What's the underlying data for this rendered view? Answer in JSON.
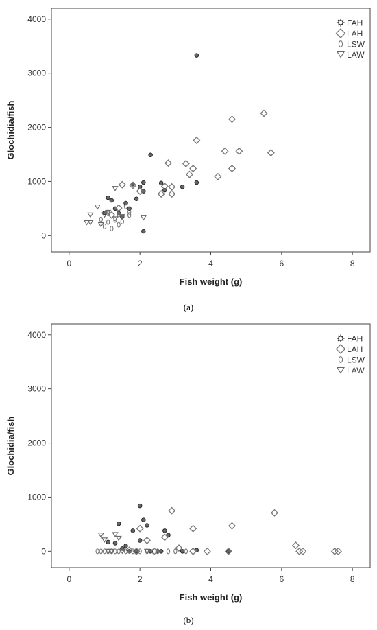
{
  "chart_data": [
    {
      "type": "scatter",
      "panel_label": "(a)",
      "xlabel": "Fish weight (g)",
      "ylabel": "Glochidia/fish",
      "xlim": [
        -0.5,
        8.5
      ],
      "ylim": [
        -300,
        4200
      ],
      "x_ticks": [
        0,
        2,
        4,
        6,
        8
      ],
      "y_ticks": [
        0,
        1000,
        2000,
        3000,
        4000
      ],
      "grid": false,
      "legend_position": "top-right",
      "series": [
        {
          "name": "FAH",
          "marker": "dot",
          "points": [
            [
              1.0,
              420
            ],
            [
              1.1,
              700
            ],
            [
              1.2,
              650
            ],
            [
              1.3,
              500
            ],
            [
              1.4,
              410
            ],
            [
              1.5,
              350
            ],
            [
              1.6,
              600
            ],
            [
              1.7,
              500
            ],
            [
              1.8,
              950
            ],
            [
              1.9,
              680
            ],
            [
              2.0,
              900
            ],
            [
              2.1,
              820
            ],
            [
              2.1,
              980
            ],
            [
              2.1,
              80
            ],
            [
              2.3,
              1490
            ],
            [
              2.6,
              970
            ],
            [
              2.7,
              840
            ],
            [
              3.2,
              900
            ],
            [
              3.6,
              3330
            ],
            [
              3.6,
              980
            ]
          ]
        },
        {
          "name": "LAH",
          "marker": "diamond",
          "points": [
            [
              1.2,
              380
            ],
            [
              1.4,
              510
            ],
            [
              1.5,
              940
            ],
            [
              1.8,
              930
            ],
            [
              2.0,
              820
            ],
            [
              2.6,
              770
            ],
            [
              2.7,
              910
            ],
            [
              2.8,
              1340
            ],
            [
              2.9,
              770
            ],
            [
              2.9,
              900
            ],
            [
              3.3,
              1330
            ],
            [
              3.4,
              1130
            ],
            [
              3.5,
              1240
            ],
            [
              3.6,
              1760
            ],
            [
              4.2,
              1090
            ],
            [
              4.4,
              1560
            ],
            [
              4.6,
              2150
            ],
            [
              4.6,
              1240
            ],
            [
              4.8,
              1560
            ],
            [
              5.5,
              2260
            ],
            [
              5.7,
              1530
            ]
          ]
        },
        {
          "name": "LSW",
          "marker": "zero",
          "points": [
            [
              0.9,
              300
            ],
            [
              1.0,
              170
            ],
            [
              1.1,
              250
            ],
            [
              1.1,
              410
            ],
            [
              1.2,
              130
            ],
            [
              1.3,
              290
            ],
            [
              1.4,
              200
            ],
            [
              1.4,
              390
            ],
            [
              1.5,
              260
            ],
            [
              1.6,
              540
            ],
            [
              1.7,
              440
            ],
            [
              1.7,
              380
            ]
          ]
        },
        {
          "name": "LAW",
          "marker": "triangle",
          "points": [
            [
              0.5,
              240
            ],
            [
              0.6,
              240
            ],
            [
              0.6,
              380
            ],
            [
              0.8,
              530
            ],
            [
              0.9,
              200
            ],
            [
              1.0,
              380
            ],
            [
              1.1,
              430
            ],
            [
              1.3,
              310
            ],
            [
              1.3,
              870
            ],
            [
              1.5,
              350
            ],
            [
              2.1,
              330
            ]
          ]
        }
      ]
    },
    {
      "type": "scatter",
      "panel_label": "(b)",
      "xlabel": "Fish weight (g)",
      "ylabel": "Glochidia/fish",
      "xlim": [
        -0.5,
        8.5
      ],
      "ylim": [
        -300,
        4200
      ],
      "x_ticks": [
        0,
        2,
        4,
        6,
        8
      ],
      "y_ticks": [
        0,
        1000,
        2000,
        3000,
        4000
      ],
      "grid": false,
      "legend_position": "top-right",
      "series": [
        {
          "name": "FAH",
          "marker": "dot",
          "points": [
            [
              1.1,
              170
            ],
            [
              1.3,
              150
            ],
            [
              1.4,
              510
            ],
            [
              1.5,
              50
            ],
            [
              1.6,
              100
            ],
            [
              1.7,
              0
            ],
            [
              1.8,
              380
            ],
            [
              1.9,
              0
            ],
            [
              2.0,
              840
            ],
            [
              2.0,
              200
            ],
            [
              2.1,
              580
            ],
            [
              2.2,
              480
            ],
            [
              2.3,
              0
            ],
            [
              2.5,
              0
            ],
            [
              2.6,
              0
            ],
            [
              2.7,
              380
            ],
            [
              2.8,
              300
            ],
            [
              3.2,
              0
            ],
            [
              3.6,
              20
            ],
            [
              4.5,
              0
            ]
          ]
        },
        {
          "name": "LAH",
          "marker": "diamond",
          "points": [
            [
              1.7,
              20
            ],
            [
              1.9,
              0
            ],
            [
              2.0,
              420
            ],
            [
              2.2,
              200
            ],
            [
              2.4,
              0
            ],
            [
              2.7,
              260
            ],
            [
              2.9,
              750
            ],
            [
              3.1,
              60
            ],
            [
              3.5,
              420
            ],
            [
              3.5,
              0
            ],
            [
              3.9,
              0
            ],
            [
              4.5,
              0
            ],
            [
              4.6,
              470
            ],
            [
              5.8,
              710
            ],
            [
              6.4,
              110
            ],
            [
              6.5,
              0
            ],
            [
              6.6,
              0
            ],
            [
              7.5,
              0
            ],
            [
              7.6,
              0
            ]
          ]
        },
        {
          "name": "LSW",
          "marker": "zero",
          "points": [
            [
              0.8,
              0
            ],
            [
              0.9,
              0
            ],
            [
              1.0,
              0
            ],
            [
              1.1,
              0
            ],
            [
              1.2,
              0
            ],
            [
              1.3,
              0
            ],
            [
              1.4,
              0
            ],
            [
              1.6,
              0
            ],
            [
              1.8,
              0
            ],
            [
              2.0,
              0
            ],
            [
              2.2,
              0
            ],
            [
              2.5,
              0
            ],
            [
              2.8,
              0
            ],
            [
              3.0,
              0
            ],
            [
              3.3,
              0
            ]
          ]
        },
        {
          "name": "LAW",
          "marker": "triangle",
          "points": [
            [
              0.9,
              300
            ],
            [
              1.0,
              210
            ],
            [
              1.1,
              0
            ],
            [
              1.2,
              0
            ],
            [
              1.3,
              310
            ],
            [
              1.4,
              240
            ],
            [
              1.5,
              0
            ],
            [
              2.2,
              0
            ]
          ]
        }
      ]
    }
  ]
}
